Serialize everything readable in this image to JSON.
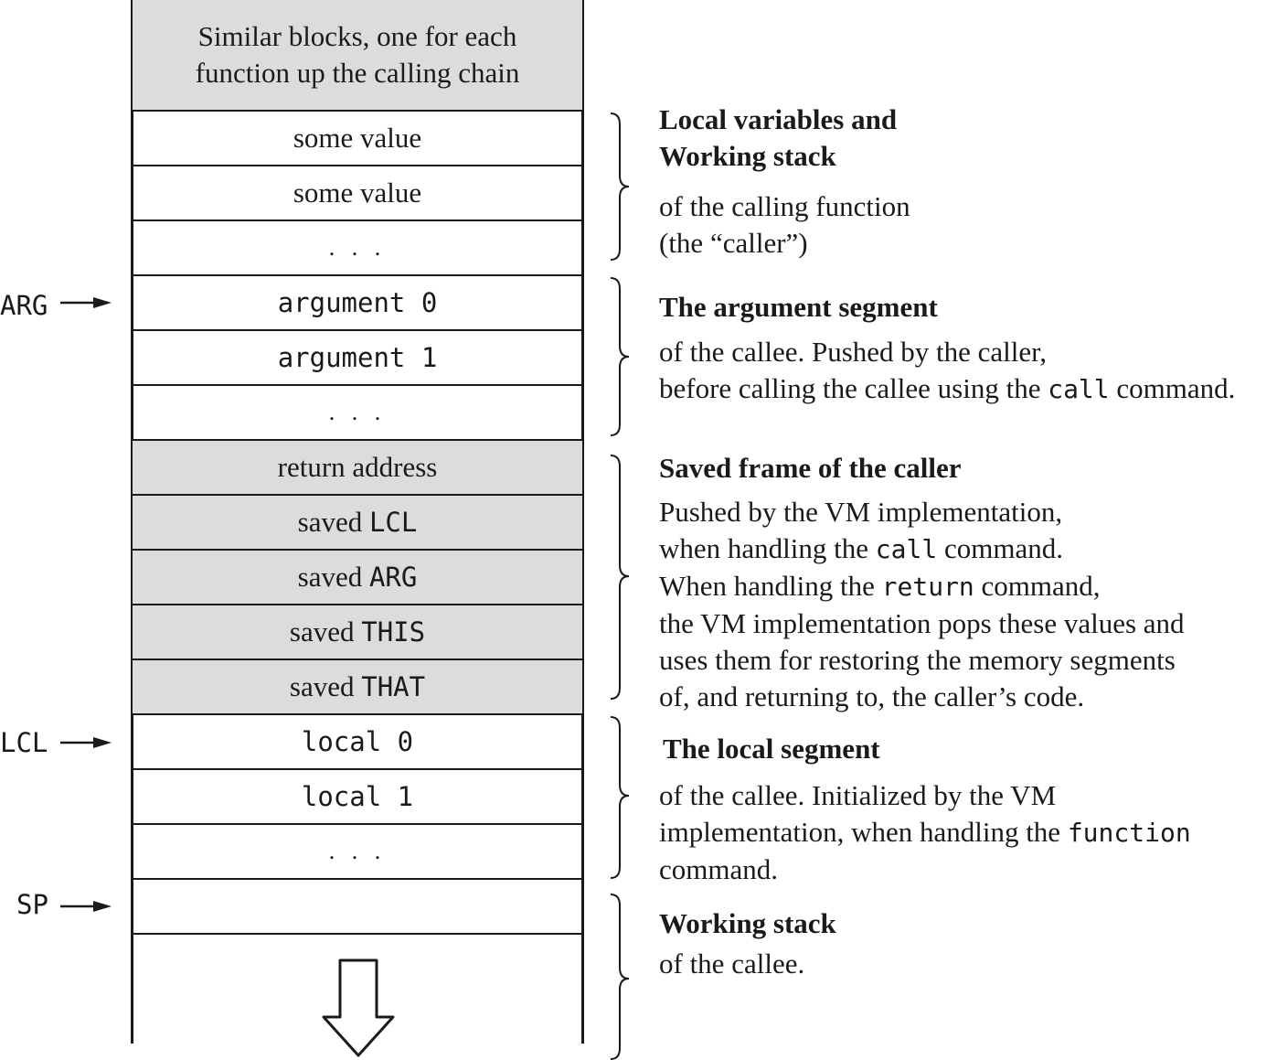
{
  "stack": {
    "top_block": "Similar blocks, one for each function up the calling chain",
    "cells": [
      {
        "text": "some value"
      },
      {
        "text": "some value"
      },
      {
        "text": ". . ."
      },
      {
        "text": "argument 0"
      },
      {
        "text": "argument 1"
      },
      {
        "text": ". . ."
      },
      {
        "text": "return address"
      },
      {
        "prefix": "saved ",
        "code": "LCL"
      },
      {
        "prefix": "saved ",
        "code": "ARG"
      },
      {
        "prefix": "saved ",
        "code": "THIS"
      },
      {
        "prefix": "saved ",
        "code": "THAT"
      },
      {
        "text": "local 0"
      },
      {
        "text": "local 1"
      },
      {
        "text": ". . ."
      },
      {
        "text": ""
      }
    ]
  },
  "pointers": {
    "arg": "ARG",
    "lcl": "LCL",
    "sp": "SP"
  },
  "descriptions": {
    "caller_locals": {
      "title_line1": "Local variables and",
      "title_line2": "Working stack",
      "line1": "of the calling function",
      "line2": "(the “caller”)"
    },
    "argument_segment": {
      "title": "The argument segment",
      "line1": "of the callee. Pushed by the caller,",
      "line2_pre": "before calling the callee using the ",
      "line2_code": "call",
      "line2_post": " command."
    },
    "saved_frame": {
      "title": "Saved frame of the caller",
      "line1": "Pushed by the VM implementation,",
      "line2_pre": "when handling the ",
      "line2_code": "call",
      "line2_post": " command.",
      "line3_pre": "When handling the ",
      "line3_code": "return",
      "line3_post": " command,",
      "line4": "the VM implementation pops these values and",
      "line5": "uses them for restoring the memory segments",
      "line6": "of, and returning to, the caller’s code."
    },
    "local_segment": {
      "title": "The local segment",
      "line1": "of the callee. Initialized by the VM",
      "line2_pre": "implementation, when handling the ",
      "line2_code": "function",
      "line3": "command."
    },
    "callee_working_stack": {
      "title": "Working stack",
      "line1": "of the callee."
    }
  }
}
